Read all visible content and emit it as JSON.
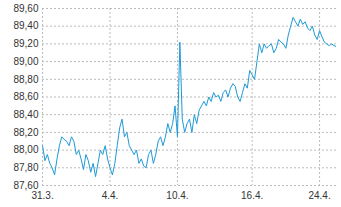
{
  "chart_data": {
    "type": "line",
    "color": "#1e9ad6",
    "grid": true,
    "x": [
      "31.3.",
      null,
      null,
      null,
      null,
      null,
      null,
      null,
      null,
      null,
      null,
      null,
      null,
      null,
      null,
      null,
      null,
      null,
      null,
      null,
      null,
      null,
      null,
      null,
      null,
      null,
      null,
      null,
      "4.4.",
      null,
      null,
      null,
      null,
      null,
      null,
      null,
      null,
      null,
      null,
      null,
      null,
      null,
      null,
      null,
      null,
      null,
      null,
      null,
      null,
      null,
      null,
      null,
      null,
      null,
      null,
      null,
      "10.4.",
      null,
      null,
      null,
      null,
      null,
      null,
      null,
      null,
      null,
      null,
      null,
      null,
      null,
      null,
      null,
      null,
      null,
      null,
      null,
      null,
      null,
      null,
      null,
      null,
      null,
      null,
      null,
      null,
      null,
      null,
      "16.4.",
      null,
      null,
      null,
      null,
      null,
      null,
      null,
      null,
      null,
      null,
      null,
      null,
      null,
      null,
      null,
      null,
      null,
      null,
      null,
      null,
      null,
      null,
      null,
      null,
      null,
      null,
      null,
      "24.4.",
      null,
      null,
      null,
      null,
      null,
      null,
      null
    ],
    "values": [
      88.05,
      87.88,
      87.95,
      87.85,
      87.8,
      87.72,
      87.9,
      88.05,
      88.15,
      88.12,
      88.1,
      88.05,
      88.15,
      88.1,
      87.95,
      88.0,
      87.9,
      87.78,
      87.95,
      87.88,
      87.75,
      87.85,
      87.7,
      87.85,
      88.0,
      87.95,
      88.05,
      87.9,
      87.8,
      87.72,
      87.85,
      88.05,
      88.25,
      88.35,
      88.15,
      88.2,
      88.05,
      88.0,
      87.95,
      88.0,
      87.85,
      87.9,
      87.82,
      87.8,
      87.95,
      88.0,
      87.85,
      87.95,
      88.1,
      88.15,
      88.05,
      88.15,
      88.3,
      88.2,
      88.3,
      88.5,
      88.15,
      89.22,
      88.35,
      88.2,
      88.3,
      88.35,
      88.2,
      88.4,
      88.3,
      88.45,
      88.5,
      88.55,
      88.5,
      88.6,
      88.55,
      88.65,
      88.6,
      88.62,
      88.55,
      88.65,
      88.68,
      88.6,
      88.7,
      88.75,
      88.72,
      88.6,
      88.55,
      88.65,
      88.75,
      88.7,
      88.9,
      88.85,
      88.8,
      89.0,
      89.2,
      89.1,
      89.2,
      89.15,
      89.18,
      89.2,
      89.1,
      89.15,
      89.25,
      89.22,
      89.2,
      89.15,
      89.3,
      89.4,
      89.5,
      89.45,
      89.4,
      89.48,
      89.42,
      89.45,
      89.38,
      89.35,
      89.4,
      89.3,
      89.25,
      89.35,
      89.28,
      89.22,
      89.2,
      89.18,
      89.2,
      89.18,
      89.17
    ],
    "ylim": [
      87.6,
      89.6
    ],
    "yticks": [
      {
        "value": 87.6,
        "label": "87,60"
      },
      {
        "value": 87.8,
        "label": "87,80"
      },
      {
        "value": 88.0,
        "label": "88,00"
      },
      {
        "value": 88.2,
        "label": "88,20"
      },
      {
        "value": 88.4,
        "label": "88,40"
      },
      {
        "value": 88.6,
        "label": "88,60"
      },
      {
        "value": 88.8,
        "label": "88,80"
      },
      {
        "value": 89.0,
        "label": "89,00"
      },
      {
        "value": 89.2,
        "label": "89,20"
      },
      {
        "value": 89.4,
        "label": "89,40"
      },
      {
        "value": 89.6,
        "label": "89,60"
      }
    ]
  }
}
